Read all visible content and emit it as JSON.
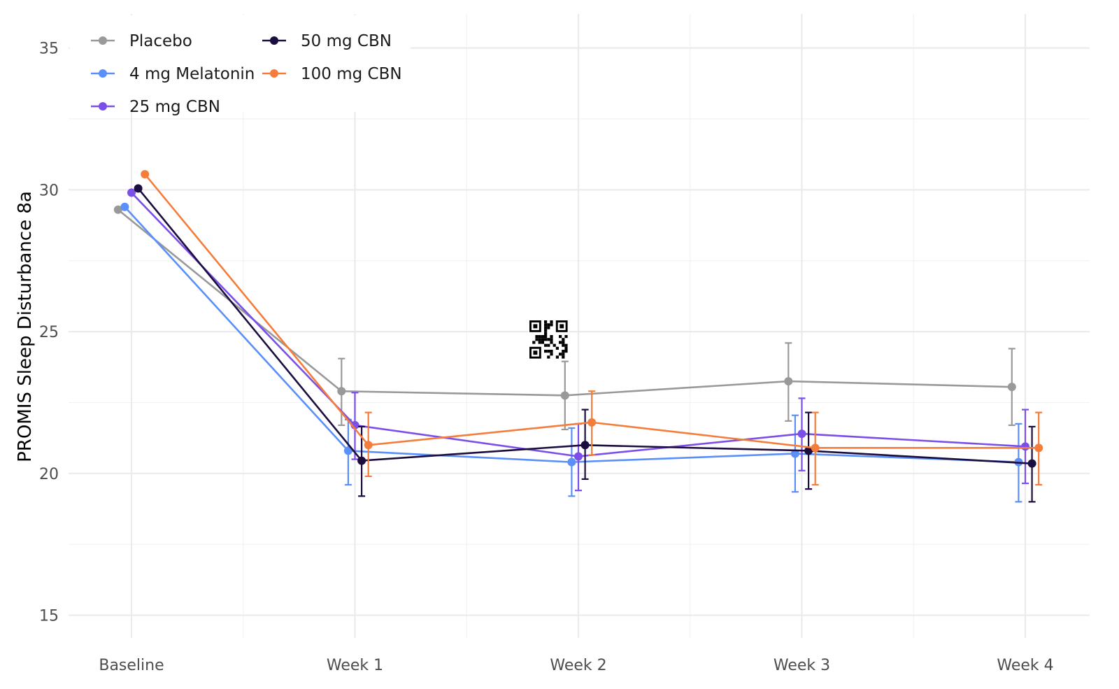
{
  "chart_data": {
    "type": "line",
    "title": "",
    "xlabel": "",
    "ylabel": "PROMIS Sleep Disturbance 8a",
    "categories": [
      "Baseline",
      "Week 1",
      "Week 2",
      "Week 3",
      "Week 4"
    ],
    "ylim": [
      14.2,
      36.2
    ],
    "yticks": [
      15,
      20,
      25,
      30,
      35
    ],
    "grid": true,
    "legend_position": "top-left",
    "series": [
      {
        "name": "Placebo",
        "color": "#999999",
        "values": [
          29.3,
          22.9,
          22.75,
          23.25,
          23.05
        ],
        "error_low": [
          null,
          21.7,
          21.55,
          21.85,
          21.7
        ],
        "error_high": [
          null,
          24.05,
          23.95,
          24.6,
          24.4
        ]
      },
      {
        "name": "4 mg Melatonin",
        "color": "#5b8ff9",
        "values": [
          29.4,
          20.8,
          20.4,
          20.7,
          20.4
        ],
        "error_low": [
          null,
          19.6,
          19.2,
          19.35,
          19.0
        ],
        "error_high": [
          null,
          21.9,
          21.6,
          22.05,
          21.75
        ]
      },
      {
        "name": "25 mg CBN",
        "color": "#7b4fe8",
        "values": [
          29.9,
          21.7,
          20.6,
          21.4,
          20.95
        ],
        "error_low": [
          null,
          20.5,
          19.4,
          20.1,
          19.65
        ],
        "error_high": [
          null,
          22.85,
          21.75,
          22.65,
          22.25
        ]
      },
      {
        "name": "50 mg CBN",
        "color": "#1b0d3d",
        "values": [
          30.05,
          20.45,
          21.0,
          20.8,
          20.35
        ],
        "error_low": [
          null,
          19.2,
          19.8,
          19.45,
          19.0
        ],
        "error_high": [
          null,
          21.65,
          22.25,
          22.15,
          21.65
        ]
      },
      {
        "name": "100 mg CBN",
        "color": "#f47d3c",
        "values": [
          30.55,
          21.0,
          21.8,
          20.9,
          20.9
        ],
        "error_low": [
          null,
          19.9,
          20.65,
          19.6,
          19.6
        ],
        "error_high": [
          null,
          22.15,
          22.9,
          22.15,
          22.15
        ]
      }
    ]
  }
}
